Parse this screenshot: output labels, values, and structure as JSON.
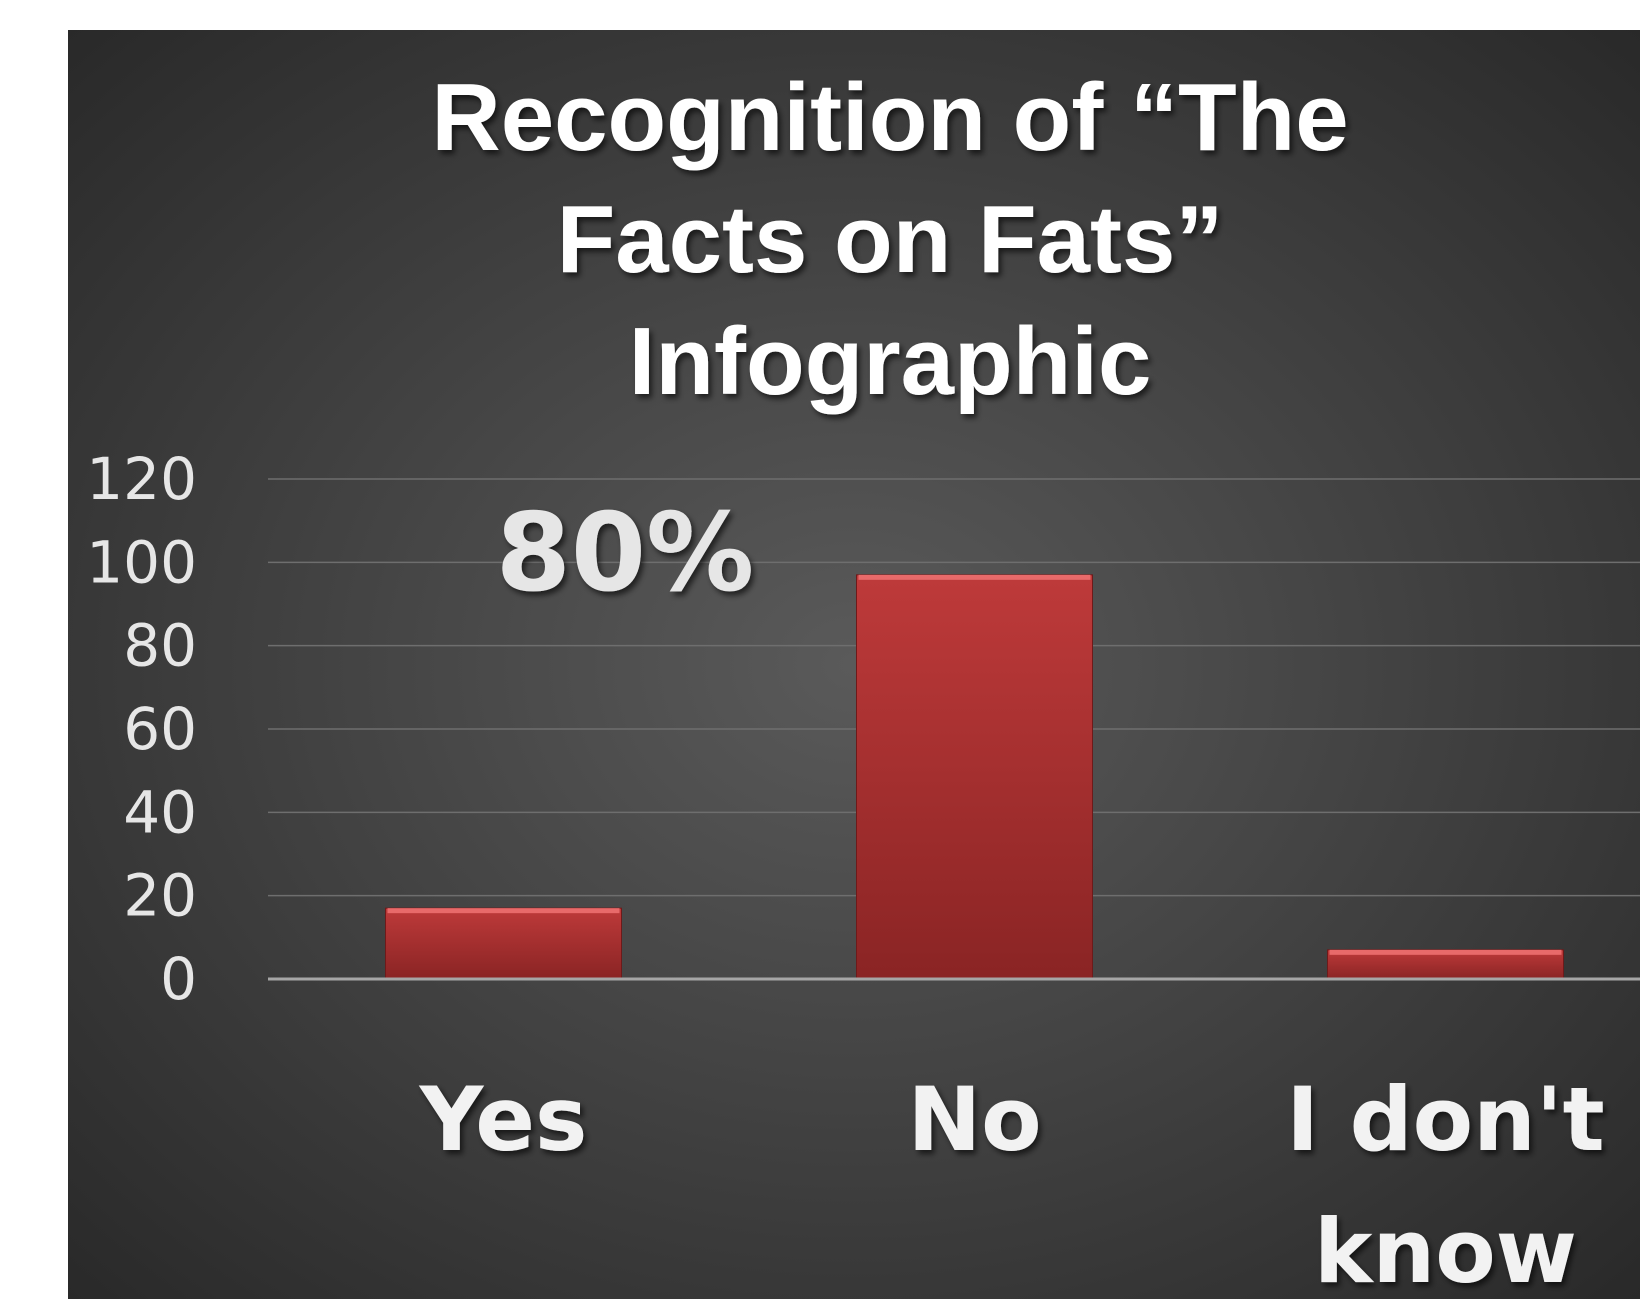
{
  "chart_data": {
    "type": "bar",
    "title_lines": [
      "Recognition of “The",
      "Facts on Fats”",
      "Infographic"
    ],
    "categories": [
      "Yes",
      "No",
      "I don't know"
    ],
    "category_label_lines": [
      [
        "Yes"
      ],
      [
        "No"
      ],
      [
        "I don't",
        "know"
      ]
    ],
    "values": [
      17,
      97,
      7
    ],
    "ylim": [
      0,
      120
    ],
    "yticks": [
      "0",
      "20",
      "40",
      "60",
      "80",
      "100",
      "120"
    ],
    "grid": true,
    "annotation": "80%",
    "colors": {
      "background_center": "#5a5a5a",
      "background_edge": "#262626",
      "bar_top": "#be3a3a",
      "bar_bottom": "#8a2424",
      "bar_highlight": "#e86a6a",
      "gridline": "#6e6e6e",
      "axis": "#a6a6a6"
    }
  }
}
